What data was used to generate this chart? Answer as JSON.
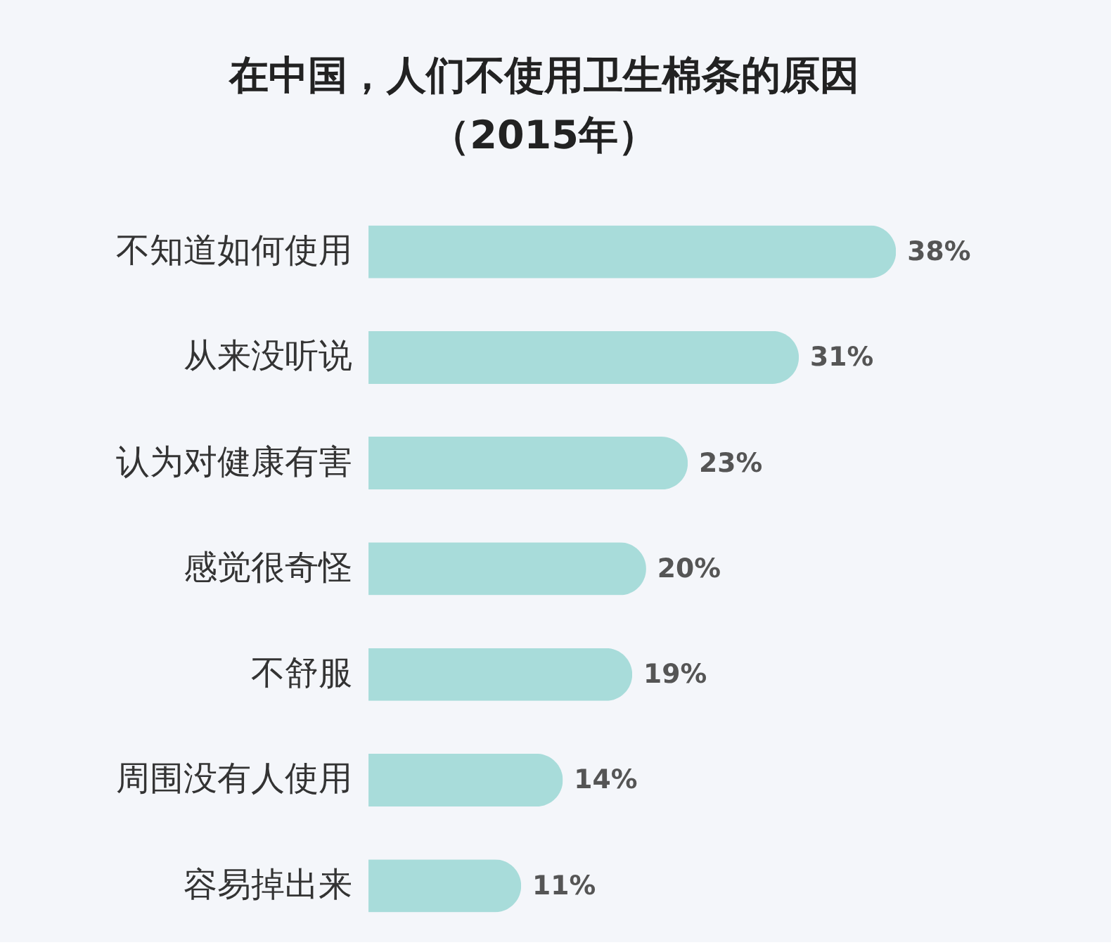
{
  "chart_data": {
    "type": "bar",
    "orientation": "horizontal",
    "title": "在中国，人们不使用卫生棉条的原因",
    "subtitle": "（2015年）",
    "categories": [
      "不知道如何使用",
      "从来没听说",
      "认为对健康有害",
      "感觉很奇怪",
      "不舒服",
      "周围没有人使用",
      "容易掉出来"
    ],
    "values": [
      38,
      31,
      23,
      20,
      19,
      14,
      11
    ],
    "value_labels": [
      "38%",
      "31%",
      "23%",
      "20%",
      "19%",
      "14%",
      "11%"
    ],
    "color": "#a8dcda"
  }
}
